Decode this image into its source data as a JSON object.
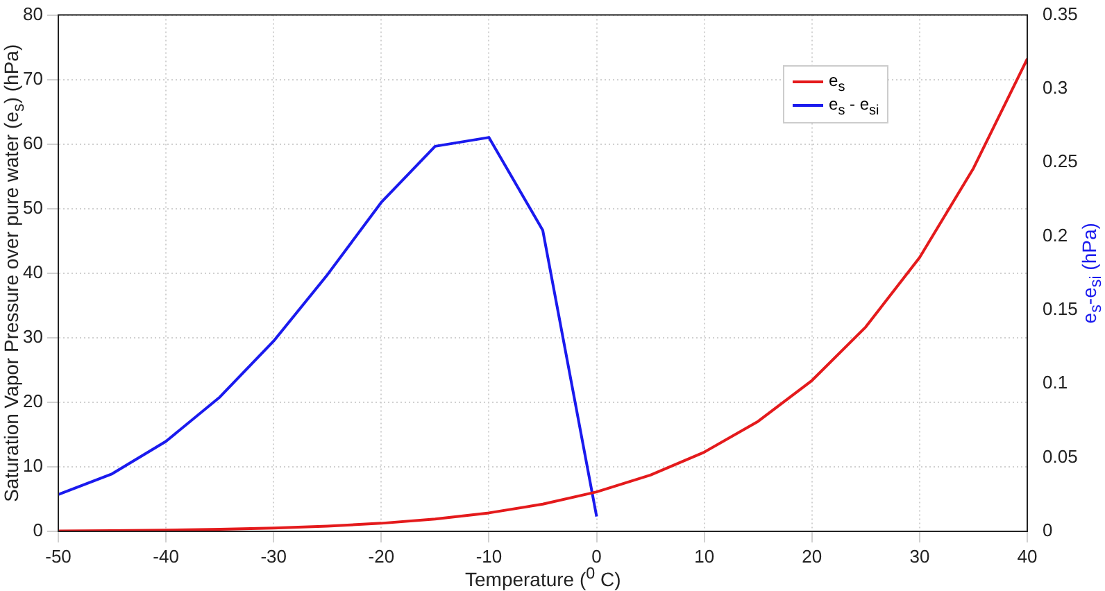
{
  "chart_data": {
    "type": "line",
    "xlabel": "Temperature ($^{0}$ C)",
    "ylabel": "Saturation Vapor Pressure over pure water (e$_{s}$) (hPa)",
    "y2label": "e$_{s}$-e$_{si}$ (hPa)",
    "x": [
      -50,
      -45,
      -40,
      -35,
      -30,
      -25,
      -20,
      -15,
      -10,
      -5,
      0,
      5,
      10,
      15,
      20,
      25,
      30,
      35,
      40
    ],
    "series": [
      {
        "name": "e$_{s}$",
        "color": "#e41a1c",
        "values": [
          0.06,
          0.11,
          0.19,
          0.31,
          0.51,
          0.81,
          1.25,
          1.91,
          2.86,
          4.22,
          6.11,
          8.72,
          12.27,
          17.04,
          23.37,
          31.67,
          42.43,
          56.24,
          73.2
        ]
      },
      {
        "name": "e$_{s}$ - e$_{si}$",
        "color": "#1a1aee",
        "axis": "y2",
        "x": [
          -50,
          -45,
          -40,
          -35,
          -30,
          -25,
          -20,
          -15,
          -10,
          -5,
          0
        ],
        "values": [
          0.025,
          0.039,
          0.061,
          0.091,
          0.129,
          0.174,
          0.223,
          0.261,
          0.267,
          0.204,
          0.01
        ]
      }
    ],
    "xlim": [
      -50,
      40
    ],
    "xticks": [
      -50,
      -40,
      -30,
      -20,
      -10,
      0,
      10,
      20,
      30,
      40
    ],
    "ylim": [
      0,
      80
    ],
    "yticks": [
      0,
      10,
      20,
      30,
      40,
      50,
      60,
      70,
      80
    ],
    "y2lim": [
      0,
      0.35
    ],
    "y2ticks": [
      0,
      0.05,
      0.1,
      0.15,
      0.2,
      0.25,
      0.3,
      0.35
    ],
    "grid": true,
    "legend": "top right",
    "marker": "none",
    "line_style": "solid"
  }
}
